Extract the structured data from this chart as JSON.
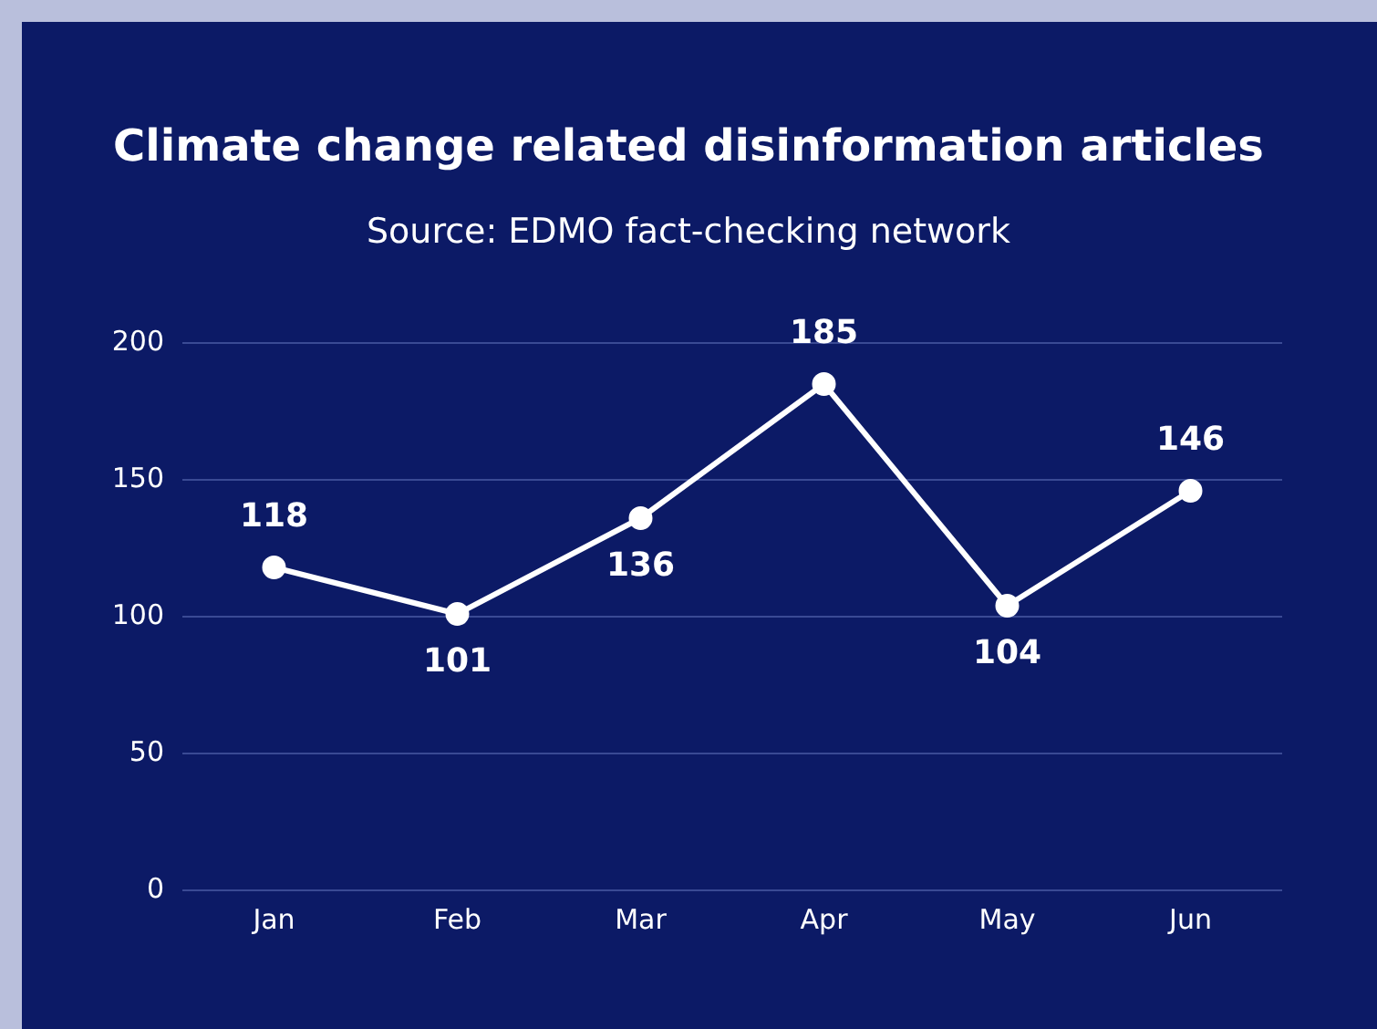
{
  "chart_data": {
    "type": "line",
    "title": "Climate change related disinformation articles",
    "subtitle": "Source: EDMO fact-checking network",
    "categories": [
      "Jan",
      "Feb",
      "Mar",
      "Apr",
      "May",
      "Jun"
    ],
    "series": [
      {
        "color": "#ffffff",
        "values": [
          118,
          101,
          136,
          185,
          104,
          146
        ]
      }
    ],
    "ylim": [
      0,
      200
    ],
    "yticks": [
      0,
      50,
      100,
      150,
      200
    ],
    "grid": "y",
    "legend": false,
    "marker": "circle",
    "line_style": "solid",
    "data_labels": true
  }
}
